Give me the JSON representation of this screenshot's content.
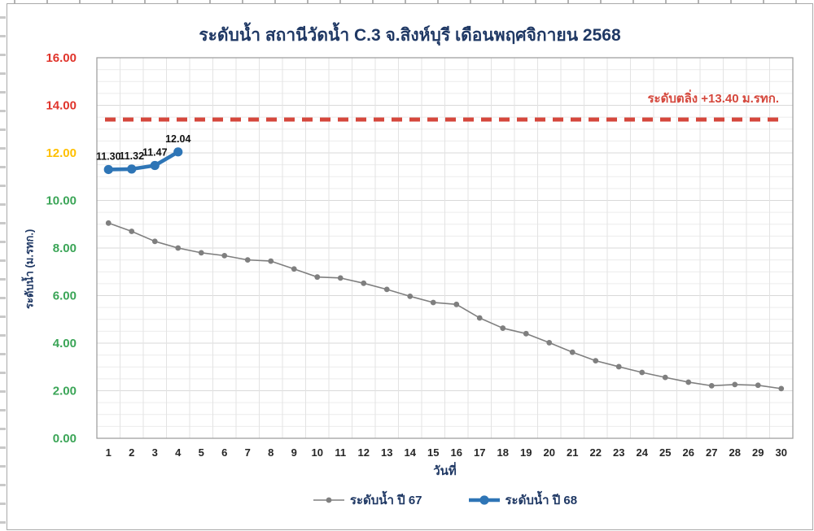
{
  "chart_data": {
    "type": "line",
    "title": "ระดับน้ำ สถานีวัดน้ำ C.3 จ.สิงห์บุรี เดือนพฤศจิกายน 2568",
    "xlabel": "วันที่",
    "ylabel": "ระดับน้ำ (ม.รทก.)",
    "ylim": [
      0,
      16
    ],
    "grid": true,
    "legend_position": "bottom",
    "title_color": "#1F3864",
    "y_ticks": [
      {
        "value": 0,
        "label": "0.00",
        "color": "#3BA557"
      },
      {
        "value": 2,
        "label": "2.00",
        "color": "#3BA557"
      },
      {
        "value": 4,
        "label": "4.00",
        "color": "#3BA557"
      },
      {
        "value": 6,
        "label": "6.00",
        "color": "#3BA557"
      },
      {
        "value": 8,
        "label": "8.00",
        "color": "#3BA557"
      },
      {
        "value": 10,
        "label": "10.00",
        "color": "#3BA557"
      },
      {
        "value": 12,
        "label": "12.00",
        "color": "#FFC000"
      },
      {
        "value": 14,
        "label": "14.00",
        "color": "#E0342B"
      },
      {
        "value": 16,
        "label": "16.00",
        "color": "#E0342B"
      }
    ],
    "categories": [
      "1",
      "2",
      "3",
      "4",
      "5",
      "6",
      "7",
      "8",
      "9",
      "10",
      "11",
      "12",
      "13",
      "14",
      "15",
      "16",
      "17",
      "18",
      "19",
      "20",
      "21",
      "22",
      "23",
      "24",
      "25",
      "26",
      "27",
      "28",
      "29",
      "30"
    ],
    "series": [
      {
        "name": "ระดับน้ำ ปี 67",
        "color": "#7F7F7F",
        "line_width": 1.6,
        "marker_radius": 3.4,
        "values": [
          9.05,
          8.7,
          8.28,
          8.0,
          7.8,
          7.68,
          7.5,
          7.45,
          7.12,
          6.78,
          6.74,
          6.52,
          6.26,
          5.97,
          5.71,
          5.63,
          5.06,
          4.63,
          4.4,
          4.02,
          3.62,
          3.26,
          3.01,
          2.77,
          2.56,
          2.36,
          2.21,
          2.26,
          2.23,
          2.09
        ]
      },
      {
        "name": "ระดับน้ำ ปี 68",
        "color": "#2E75B6",
        "line_width": 4.6,
        "marker_radius": 5.6,
        "values": [
          11.3,
          11.32,
          11.47,
          12.04
        ],
        "point_labels": [
          "11.30",
          "11.32",
          "11.47",
          "12.04"
        ]
      }
    ],
    "reference_line": {
      "value": 13.4,
      "label": "ระดับตลิ่ง +13.40 ม.รทก.",
      "color": "#D5473C",
      "style": "dashed"
    }
  }
}
